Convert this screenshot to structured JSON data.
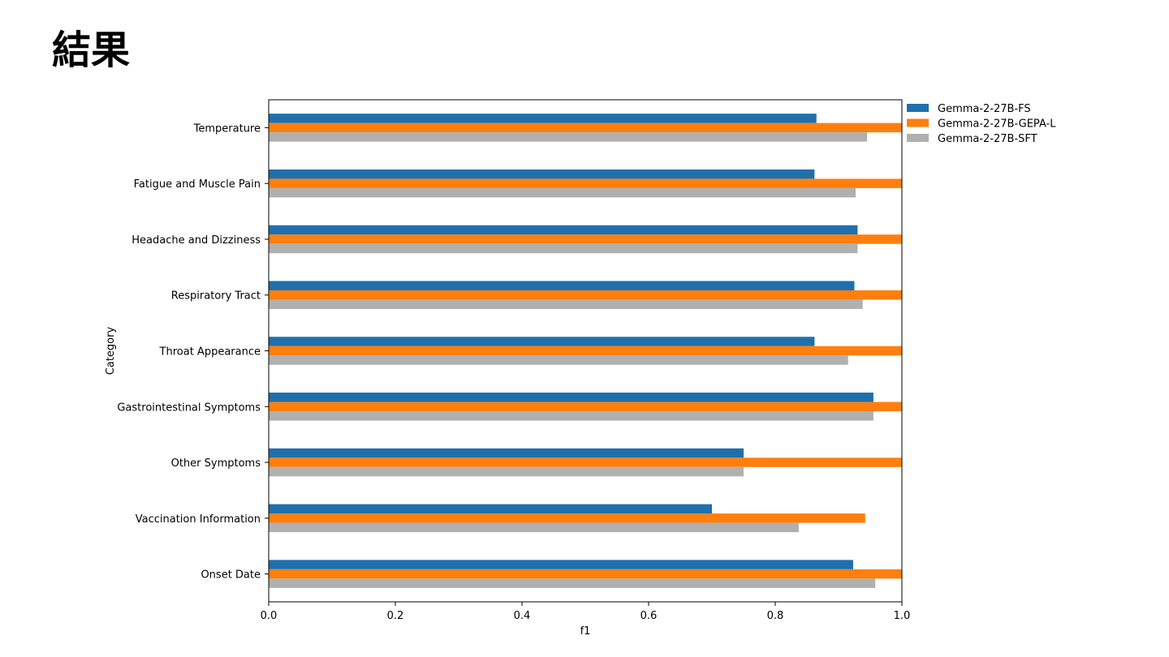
{
  "slide": {
    "title": "結果"
  },
  "chart_data": {
    "type": "bar",
    "orientation": "horizontal",
    "categories": [
      "Temperature",
      "Fatigue and Muscle Pain",
      "Headache and Dizziness",
      "Respiratory Tract",
      "Throat Appearance",
      "Gastrointestinal Symptoms",
      "Other Symptoms",
      "Vaccination Information",
      "Onset Date"
    ],
    "series": [
      {
        "name": "Gemma-2-27B-FS",
        "color": "#1f6fad",
        "values": [
          0.865,
          0.862,
          0.93,
          0.925,
          0.862,
          0.955,
          0.75,
          0.7,
          0.923
        ]
      },
      {
        "name": "Gemma-2-27B-GEPA-L",
        "color": "#ff7f0e",
        "values": [
          1.0,
          1.0,
          1.0,
          1.0,
          1.0,
          1.0,
          1.0,
          0.942,
          1.0
        ]
      },
      {
        "name": "Gemma-2-27B-SFT",
        "color": "#b0b0b0",
        "values": [
          0.945,
          0.927,
          0.93,
          0.938,
          0.915,
          0.955,
          0.75,
          0.837,
          0.958
        ]
      }
    ],
    "xlabel": "f1",
    "ylabel": "Category",
    "xlim": [
      0.0,
      1.0
    ],
    "xticks": [
      "0.0",
      "0.2",
      "0.4",
      "0.6",
      "0.8",
      "1.0"
    ],
    "legend": "top-right-outside",
    "grid": false
  }
}
